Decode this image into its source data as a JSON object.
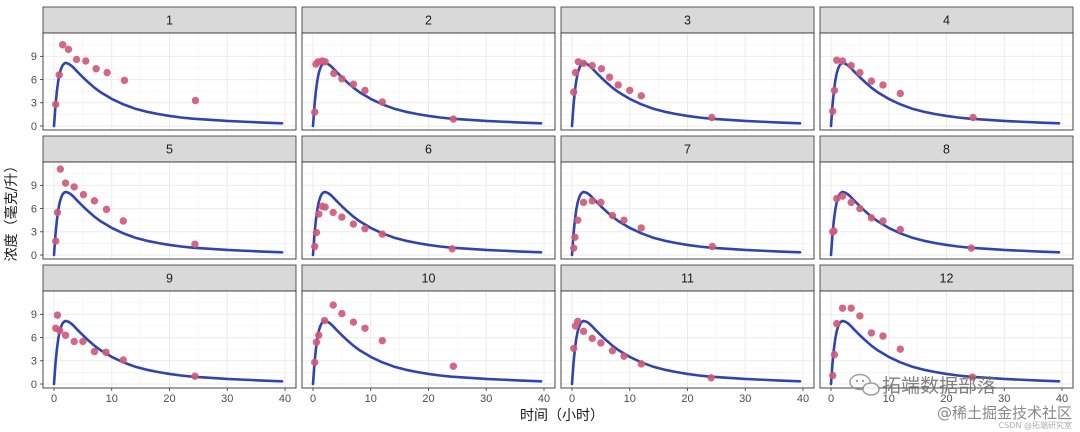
{
  "chart_data": {
    "type": "scatter",
    "xlabel": "时间（小时）",
    "ylabel": "浓度（毫克/升）",
    "xlim": [
      0,
      40
    ],
    "ylim": [
      0,
      11.5
    ],
    "xticks": [
      0,
      10,
      20,
      30,
      40
    ],
    "yticks": [
      0,
      3,
      6,
      9
    ],
    "grid": true,
    "colors": {
      "points": "#d05a78",
      "curve": "#2f44b0",
      "strip": "#d9d9d9",
      "border": "#333333",
      "grid": "#ebebeb"
    },
    "fitted_curve": {
      "name": "",
      "x": [
        0,
        0.25,
        0.5,
        0.75,
        1,
        1.25,
        1.5,
        1.75,
        2,
        2.5,
        3,
        3.5,
        4,
        5,
        6,
        7,
        8,
        10,
        12,
        14,
        16,
        18,
        20,
        22,
        24,
        27,
        30,
        33,
        36,
        39.5
      ],
      "y": [
        0,
        2.6,
        4.5,
        5.9,
        6.85,
        7.45,
        7.85,
        8.05,
        8.15,
        8.05,
        7.8,
        7.45,
        7.05,
        6.3,
        5.6,
        4.95,
        4.4,
        3.5,
        2.8,
        2.25,
        1.85,
        1.55,
        1.3,
        1.1,
        0.95,
        0.8,
        0.65,
        0.55,
        0.45,
        0.35
      ]
    },
    "panels": [
      {
        "label": "1",
        "points": [
          [
            0.3,
            2.8
          ],
          [
            0.9,
            6.6
          ],
          [
            1.5,
            10.5
          ],
          [
            2.5,
            9.9
          ],
          [
            3.9,
            8.6
          ],
          [
            5.5,
            8.4
          ],
          [
            7.3,
            7.4
          ],
          [
            9.2,
            6.9
          ],
          [
            12.2,
            5.9
          ],
          [
            24.5,
            3.3
          ]
        ]
      },
      {
        "label": "2",
        "points": [
          [
            0.3,
            1.8
          ],
          [
            0.5,
            8.0
          ],
          [
            0.9,
            8.3
          ],
          [
            1.6,
            8.4
          ],
          [
            2.1,
            8.3
          ],
          [
            3.6,
            6.8
          ],
          [
            5.0,
            6.1
          ],
          [
            7.0,
            5.4
          ],
          [
            9.0,
            4.6
          ],
          [
            12.0,
            3.1
          ],
          [
            24.3,
            0.9
          ]
        ]
      },
      {
        "label": "3",
        "points": [
          [
            0.3,
            4.4
          ],
          [
            0.6,
            6.9
          ],
          [
            1.1,
            8.3
          ],
          [
            2.0,
            8.1
          ],
          [
            3.5,
            7.8
          ],
          [
            5.1,
            7.4
          ],
          [
            6.5,
            6.3
          ],
          [
            8.0,
            5.3
          ],
          [
            10.0,
            4.6
          ],
          [
            12.0,
            3.9
          ],
          [
            24.2,
            1.1
          ]
        ]
      },
      {
        "label": "4",
        "points": [
          [
            0.3,
            1.9
          ],
          [
            0.6,
            4.6
          ],
          [
            1.0,
            8.5
          ],
          [
            2.0,
            8.4
          ],
          [
            3.5,
            7.8
          ],
          [
            5.0,
            6.9
          ],
          [
            7.0,
            5.8
          ],
          [
            9.0,
            5.3
          ],
          [
            12.0,
            4.2
          ],
          [
            24.6,
            1.1
          ]
        ]
      },
      {
        "label": "5",
        "points": [
          [
            0.3,
            1.8
          ],
          [
            0.6,
            5.5
          ],
          [
            1.1,
            11.1
          ],
          [
            2.0,
            9.3
          ],
          [
            3.5,
            8.8
          ],
          [
            5.1,
            7.8
          ],
          [
            7.0,
            7.0
          ],
          [
            9.1,
            5.9
          ],
          [
            12.0,
            4.4
          ],
          [
            24.4,
            1.4
          ]
        ]
      },
      {
        "label": "6",
        "points": [
          [
            0.3,
            1.1
          ],
          [
            0.6,
            2.9
          ],
          [
            1.0,
            5.3
          ],
          [
            1.6,
            6.3
          ],
          [
            2.1,
            6.2
          ],
          [
            3.5,
            5.5
          ],
          [
            5.0,
            4.9
          ],
          [
            7.0,
            4.0
          ],
          [
            9.0,
            3.4
          ],
          [
            12.0,
            2.7
          ],
          [
            24.1,
            0.8
          ]
        ]
      },
      {
        "label": "7",
        "points": [
          [
            0.3,
            0.9
          ],
          [
            0.5,
            2.3
          ],
          [
            1.0,
            4.5
          ],
          [
            2.0,
            6.8
          ],
          [
            3.5,
            7.0
          ],
          [
            5.0,
            6.8
          ],
          [
            7.0,
            5.1
          ],
          [
            9.0,
            4.5
          ],
          [
            12.0,
            3.5
          ],
          [
            24.3,
            1.1
          ]
        ]
      },
      {
        "label": "8",
        "points": [
          [
            0.3,
            3.0
          ],
          [
            0.5,
            3.1
          ],
          [
            1.0,
            7.3
          ],
          [
            2.0,
            7.6
          ],
          [
            3.5,
            6.8
          ],
          [
            5.0,
            6.0
          ],
          [
            7.0,
            4.8
          ],
          [
            9.0,
            4.4
          ],
          [
            12.0,
            3.3
          ],
          [
            24.3,
            0.9
          ]
        ]
      },
      {
        "label": "9",
        "points": [
          [
            0.3,
            7.2
          ],
          [
            0.6,
            8.9
          ],
          [
            1.0,
            6.9
          ],
          [
            2.0,
            6.3
          ],
          [
            3.5,
            5.5
          ],
          [
            5.0,
            5.5
          ],
          [
            7.0,
            4.2
          ],
          [
            9.0,
            4.1
          ],
          [
            12.0,
            3.1
          ],
          [
            24.4,
            1.0
          ]
        ]
      },
      {
        "label": "10",
        "points": [
          [
            0.3,
            2.8
          ],
          [
            0.6,
            5.4
          ],
          [
            1.0,
            6.3
          ],
          [
            2.0,
            8.2
          ],
          [
            3.5,
            10.2
          ],
          [
            5.0,
            9.1
          ],
          [
            7.0,
            8.0
          ],
          [
            9.0,
            7.2
          ],
          [
            12.0,
            5.6
          ],
          [
            24.3,
            2.3
          ]
        ]
      },
      {
        "label": "11",
        "points": [
          [
            0.3,
            4.6
          ],
          [
            0.6,
            7.5
          ],
          [
            1.0,
            8.1
          ],
          [
            2.0,
            6.8
          ],
          [
            3.5,
            5.9
          ],
          [
            5.0,
            5.3
          ],
          [
            7.0,
            4.3
          ],
          [
            9.0,
            3.6
          ],
          [
            12.0,
            2.6
          ],
          [
            24.1,
            0.8
          ]
        ]
      },
      {
        "label": "12",
        "points": [
          [
            0.3,
            1.1
          ],
          [
            0.6,
            3.8
          ],
          [
            1.0,
            7.8
          ],
          [
            2.0,
            9.8
          ],
          [
            3.5,
            9.8
          ],
          [
            5.0,
            8.8
          ],
          [
            7.0,
            6.6
          ],
          [
            9.0,
            6.2
          ],
          [
            12.0,
            4.5
          ],
          [
            24.5,
            0.9
          ]
        ]
      }
    ]
  },
  "watermarks": {
    "wechat": "拓端数据部落",
    "juejin": "@稀土掘金技术社区",
    "csdn": "CSDN @拓端研究室"
  }
}
